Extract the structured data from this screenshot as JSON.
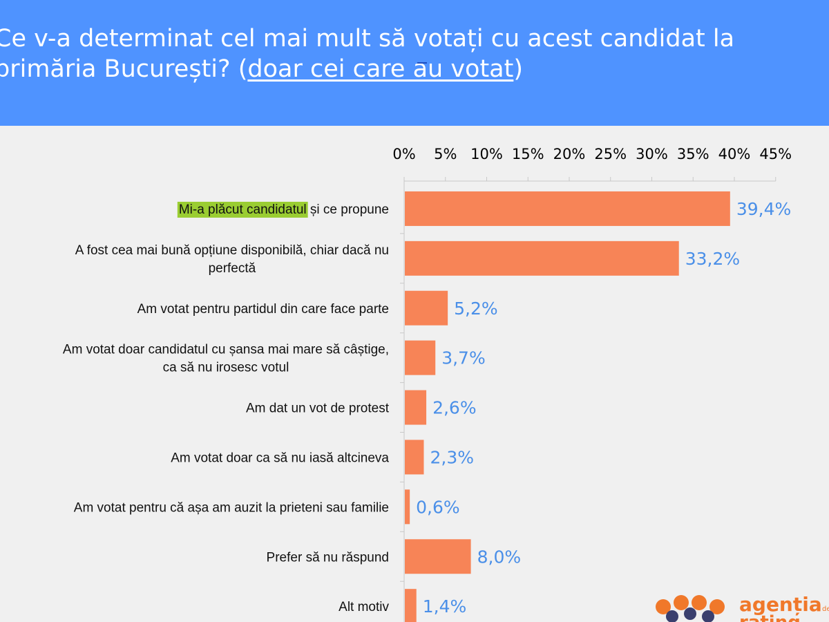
{
  "title": {
    "main": "Ce v-a determinat cel mai mult să votați cu acest candidat la primăria București? ",
    "paren_open": "(",
    "paren_text": "doar cei care au votat",
    "paren_close": ")"
  },
  "logo": {
    "line1": "agenția",
    "line2": "rating",
    "small": "de"
  },
  "colors": {
    "header": "#4f93ff",
    "bar": "#f78457",
    "value_label": "#4a8fe8",
    "highlight": "#9acd32"
  },
  "chart_data": {
    "type": "bar",
    "orientation": "horizontal",
    "title": "Ce v-a determinat cel mai mult să votați cu acest candidat la primăria București? (doar cei care au votat)",
    "xlim": [
      0,
      45
    ],
    "ticks": [
      "0%",
      "5%",
      "10%",
      "15%",
      "20%",
      "25%",
      "30%",
      "35%",
      "40%",
      "45%"
    ],
    "tick_values": [
      0,
      5,
      10,
      15,
      20,
      25,
      30,
      35,
      40,
      45
    ],
    "categories": [
      [
        "Mi-a plăcut candidatul și ce propune"
      ],
      [
        "A fost cea mai bună opțiune disponibilă, chiar dacă nu",
        "perfectă"
      ],
      [
        "Am votat pentru partidul din care face parte"
      ],
      [
        "Am votat doar candidatul cu șansa mai mare să câștige,",
        "ca să nu irosesc votul"
      ],
      [
        "Am dat un vot de protest"
      ],
      [
        "Am votat doar ca să nu iasă altcineva"
      ],
      [
        "Am votat pentru că așa am auzit la prieteni sau familie"
      ],
      [
        "Prefer să nu răspund"
      ],
      [
        "Alt motiv"
      ]
    ],
    "highlighted_text": "Mi-a plăcut candidatul",
    "values": [
      39.4,
      33.2,
      5.2,
      3.7,
      2.6,
      2.3,
      0.6,
      8.0,
      1.4
    ],
    "value_labels": [
      "39,4%",
      "33,2%",
      "5,2%",
      "3,7%",
      "2,6%",
      "2,3%",
      "0,6%",
      "8,0%",
      "1,4%"
    ]
  }
}
